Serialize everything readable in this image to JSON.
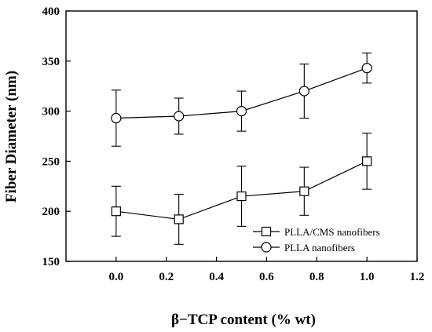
{
  "chart_data": {
    "type": "line",
    "xlabel": "β−TCP content (% wt)",
    "ylabel": "Fiber Diameter (nm)",
    "xlim": [
      -0.2,
      1.2
    ],
    "ylim": [
      150,
      400
    ],
    "xticks": [
      0.0,
      0.2,
      0.4,
      0.6,
      0.8,
      1.0,
      1.2
    ],
    "xtick_labels": [
      "0.0",
      "0.2",
      "0.4",
      "0.6",
      "0.8",
      "1.0",
      "1.2"
    ],
    "yticks": [
      150,
      200,
      250,
      300,
      350,
      400
    ],
    "ytick_labels": [
      "150",
      "200",
      "250",
      "300",
      "350",
      "400"
    ],
    "grid": false,
    "legend_position": "bottom-right",
    "series": [
      {
        "name": "PLLA/CMS nanofibers",
        "marker": "square",
        "x": [
          0.0,
          0.25,
          0.5,
          0.75,
          1.0
        ],
        "y": [
          200,
          192,
          215,
          220,
          250
        ],
        "error": [
          25,
          25,
          30,
          24,
          28
        ]
      },
      {
        "name": "PLLA nanofibers",
        "marker": "circle",
        "x": [
          0.0,
          0.25,
          0.5,
          0.75,
          1.0
        ],
        "y": [
          293,
          295,
          300,
          320,
          343
        ],
        "error": [
          28,
          18,
          20,
          27,
          15
        ]
      }
    ]
  }
}
